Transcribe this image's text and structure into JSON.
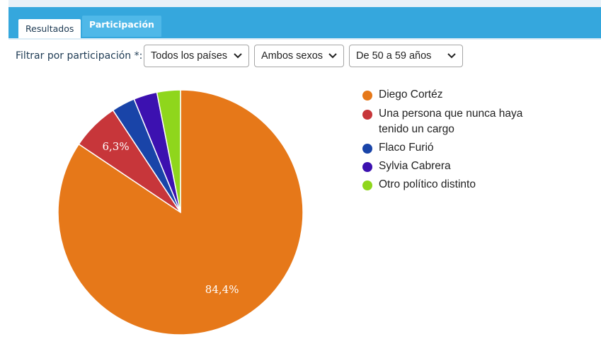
{
  "tabs": [
    {
      "label": "Resultados",
      "active": true
    },
    {
      "label": "Participación",
      "active": false
    }
  ],
  "filters": {
    "label": "Filtrar por participación *:",
    "country": "Todos los países",
    "sex": "Ambos sexos",
    "age": "De 50 a 59 años"
  },
  "chart_data": {
    "type": "pie",
    "slices": [
      {
        "name": "Diego Cortéz",
        "value": 84.4,
        "label": "84,4%",
        "color": "#e67819"
      },
      {
        "name": "Una persona que nunca haya tenido un cargo",
        "value": 6.3,
        "label": "6,3%",
        "color": "#c7363a"
      },
      {
        "name": "Flaco Furió",
        "value": 3.1,
        "label": "",
        "color": "#1944a8"
      },
      {
        "name": "Sylvia Cabrera",
        "value": 3.1,
        "label": "",
        "color": "#3c11b0"
      },
      {
        "name": "Otro político distinto",
        "value": 3.1,
        "label": "",
        "color": "#8fd61c"
      }
    ],
    "legend_position": "right"
  }
}
